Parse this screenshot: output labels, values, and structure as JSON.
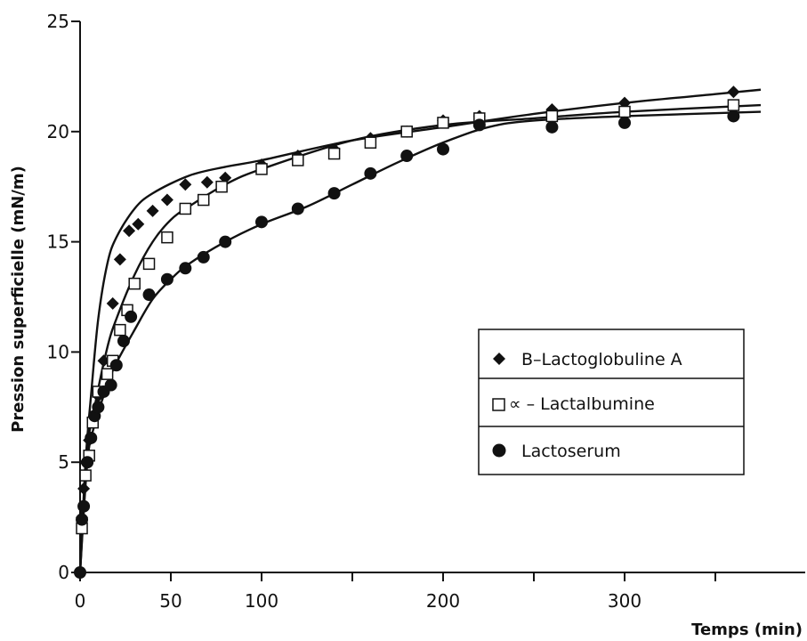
{
  "chart_data": {
    "type": "scatter",
    "title": "",
    "xlabel": "Temps (min)",
    "ylabel": "Pression superficielle (mN/m)",
    "xlim": [
      0,
      375
    ],
    "ylim": [
      0,
      25
    ],
    "x_ticks": [
      0,
      50,
      100,
      200,
      300
    ],
    "x_minor_ticks": [
      150,
      250,
      350
    ],
    "y_ticks": [
      0,
      5,
      10,
      15,
      20,
      25
    ],
    "grid": false,
    "legend_position": "right",
    "series": [
      {
        "name": "B–Lactoglobuline A",
        "marker": "diamond",
        "points": [
          [
            0,
            0
          ],
          [
            1,
            2.5
          ],
          [
            2,
            3.8
          ],
          [
            3,
            5.0
          ],
          [
            5,
            6.0
          ],
          [
            7,
            7.0
          ],
          [
            10,
            8.0
          ],
          [
            13,
            9.6
          ],
          [
            18,
            12.2
          ],
          [
            22,
            14.2
          ],
          [
            27,
            15.5
          ],
          [
            32,
            15.8
          ],
          [
            40,
            16.4
          ],
          [
            48,
            16.9
          ],
          [
            58,
            17.6
          ],
          [
            70,
            17.7
          ],
          [
            80,
            17.9
          ],
          [
            100,
            18.5
          ],
          [
            120,
            18.9
          ],
          [
            140,
            19.2
          ],
          [
            160,
            19.7
          ],
          [
            180,
            20.0
          ],
          [
            200,
            20.5
          ],
          [
            220,
            20.7
          ],
          [
            260,
            21.0
          ],
          [
            300,
            21.3
          ],
          [
            360,
            21.8
          ]
        ],
        "fit": [
          [
            0,
            0
          ],
          [
            3,
            5.0
          ],
          [
            6,
            8.0
          ],
          [
            10,
            11.5
          ],
          [
            15,
            14.0
          ],
          [
            20,
            15.2
          ],
          [
            30,
            16.5
          ],
          [
            40,
            17.2
          ],
          [
            60,
            18.0
          ],
          [
            80,
            18.4
          ],
          [
            100,
            18.7
          ],
          [
            150,
            19.6
          ],
          [
            200,
            20.2
          ],
          [
            250,
            20.8
          ],
          [
            300,
            21.3
          ],
          [
            350,
            21.7
          ],
          [
            375,
            21.9
          ]
        ]
      },
      {
        "name": "∝ – Lactalbumine",
        "marker": "square",
        "points": [
          [
            1,
            2.0
          ],
          [
            3,
            4.4
          ],
          [
            5,
            5.3
          ],
          [
            7,
            6.8
          ],
          [
            10,
            8.2
          ],
          [
            15,
            9.0
          ],
          [
            18,
            9.6
          ],
          [
            22,
            11.0
          ],
          [
            26,
            11.9
          ],
          [
            30,
            13.1
          ],
          [
            38,
            14.0
          ],
          [
            48,
            15.2
          ],
          [
            58,
            16.5
          ],
          [
            68,
            16.9
          ],
          [
            78,
            17.5
          ],
          [
            100,
            18.3
          ],
          [
            120,
            18.7
          ],
          [
            140,
            19.0
          ],
          [
            160,
            19.5
          ],
          [
            180,
            20.0
          ],
          [
            200,
            20.4
          ],
          [
            220,
            20.6
          ],
          [
            260,
            20.7
          ],
          [
            300,
            20.9
          ],
          [
            360,
            21.2
          ]
        ],
        "fit": [
          [
            0,
            0
          ],
          [
            4,
            5.5
          ],
          [
            8,
            7.5
          ],
          [
            15,
            10.2
          ],
          [
            20,
            11.5
          ],
          [
            30,
            13.5
          ],
          [
            40,
            15.0
          ],
          [
            50,
            16.0
          ],
          [
            60,
            16.6
          ],
          [
            80,
            17.6
          ],
          [
            100,
            18.3
          ],
          [
            150,
            19.6
          ],
          [
            200,
            20.3
          ],
          [
            250,
            20.6
          ],
          [
            300,
            20.9
          ],
          [
            375,
            21.2
          ]
        ]
      },
      {
        "name": "Lactoserum",
        "marker": "circle",
        "points": [
          [
            0,
            0
          ],
          [
            1,
            2.4
          ],
          [
            2,
            3.0
          ],
          [
            4,
            5.0
          ],
          [
            6,
            6.1
          ],
          [
            8,
            7.1
          ],
          [
            10,
            7.5
          ],
          [
            13,
            8.2
          ],
          [
            17,
            8.5
          ],
          [
            20,
            9.4
          ],
          [
            24,
            10.5
          ],
          [
            28,
            11.6
          ],
          [
            38,
            12.6
          ],
          [
            48,
            13.3
          ],
          [
            58,
            13.8
          ],
          [
            68,
            14.3
          ],
          [
            80,
            15.0
          ],
          [
            100,
            15.9
          ],
          [
            120,
            16.5
          ],
          [
            140,
            17.2
          ],
          [
            160,
            18.1
          ],
          [
            180,
            18.9
          ],
          [
            200,
            19.2
          ],
          [
            220,
            20.3
          ],
          [
            260,
            20.2
          ],
          [
            300,
            20.4
          ],
          [
            360,
            20.7
          ]
        ],
        "fit": [
          [
            0,
            0
          ],
          [
            4,
            5.0
          ],
          [
            8,
            6.7
          ],
          [
            15,
            8.5
          ],
          [
            20,
            9.5
          ],
          [
            30,
            11.0
          ],
          [
            40,
            12.4
          ],
          [
            50,
            13.3
          ],
          [
            60,
            14.0
          ],
          [
            80,
            15.0
          ],
          [
            100,
            15.8
          ],
          [
            125,
            16.6
          ],
          [
            150,
            17.6
          ],
          [
            175,
            18.6
          ],
          [
            200,
            19.5
          ],
          [
            225,
            20.2
          ],
          [
            250,
            20.5
          ],
          [
            300,
            20.7
          ],
          [
            375,
            20.9
          ]
        ]
      }
    ]
  }
}
